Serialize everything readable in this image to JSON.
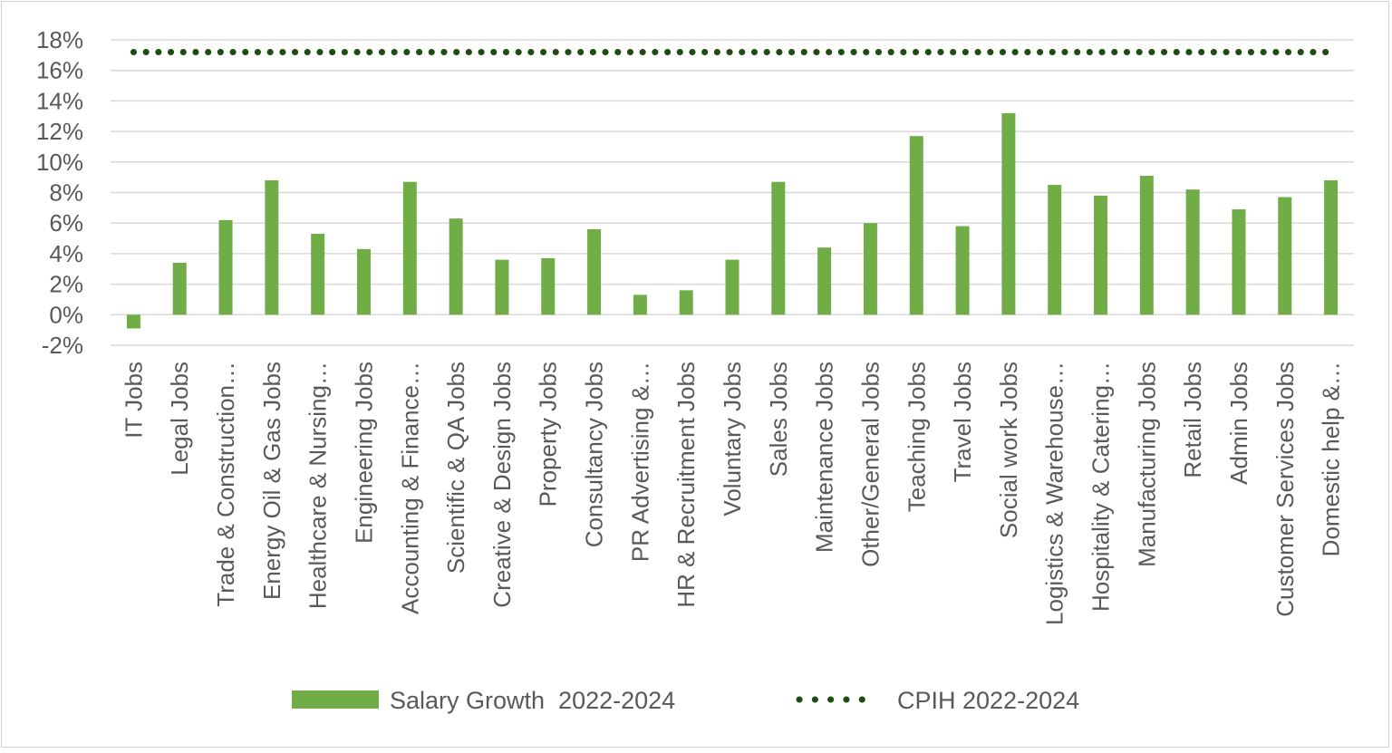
{
  "chart_data": {
    "type": "bar",
    "title": "",
    "xlabel": "",
    "ylabel": "",
    "ylim": [
      -2,
      18
    ],
    "ytick_step": 2,
    "ytick_format": "percent",
    "grid": true,
    "legend_position": "bottom",
    "categories": [
      "IT Jobs",
      "Legal Jobs",
      "Trade & Construction…",
      "Energy Oil & Gas Jobs",
      "Healthcare & Nursing…",
      "Engineering Jobs",
      "Accounting & Finance…",
      "Scientific & QA Jobs",
      "Creative & Design Jobs",
      "Property Jobs",
      "Consultancy Jobs",
      "PR Advertising &…",
      "HR & Recruitment Jobs",
      "Voluntary Jobs",
      "Sales Jobs",
      "Maintenance Jobs",
      "Other/General Jobs",
      "Teaching Jobs",
      "Travel Jobs",
      "Social work Jobs",
      "Logistics & Warehouse…",
      "Hospitality & Catering…",
      "Manufacturing Jobs",
      "Retail Jobs",
      "Admin Jobs",
      "Customer Services Jobs",
      "Domestic help &…"
    ],
    "series": [
      {
        "name": "Salary Growth  2022-2024",
        "kind": "bar",
        "color": "#70ad47",
        "values": [
          -0.9,
          3.4,
          6.2,
          8.8,
          5.3,
          4.3,
          8.7,
          6.3,
          3.6,
          3.7,
          5.6,
          1.3,
          1.6,
          3.6,
          8.7,
          4.4,
          6.0,
          11.7,
          5.8,
          13.2,
          8.5,
          7.8,
          9.1,
          8.2,
          6.9,
          7.7,
          8.8
        ]
      },
      {
        "name": "CPIH 2022-2024",
        "kind": "line",
        "style": "dotted",
        "color": "#1e4d12",
        "value": 17.2
      }
    ]
  }
}
